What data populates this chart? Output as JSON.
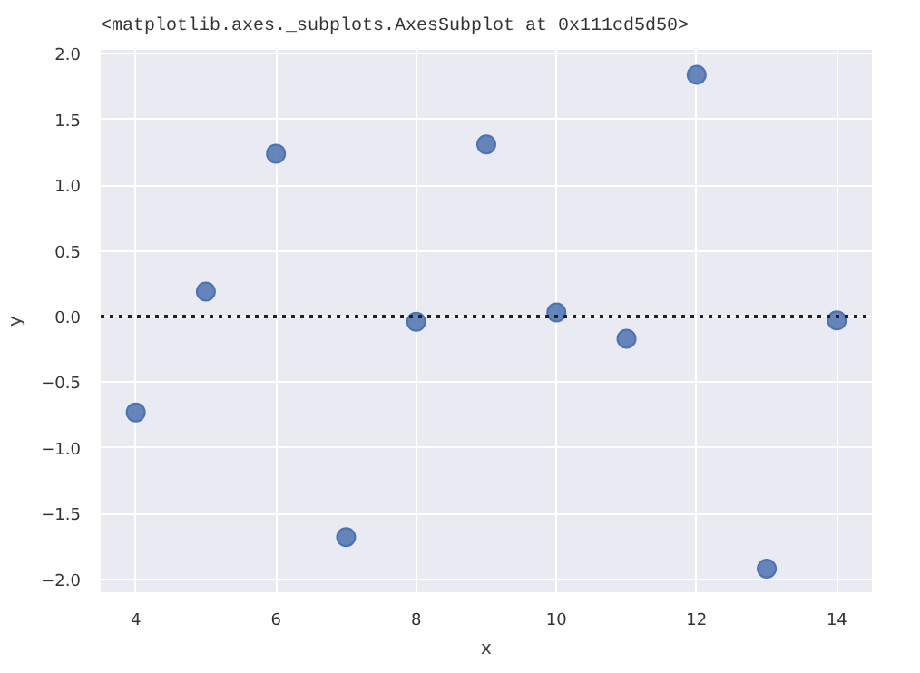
{
  "chart_data": {
    "type": "scatter",
    "xlabel": "x",
    "ylabel": "y",
    "annotations": [
      "<matplotlib.axes._subplots.AxesSubplot at 0x111cd5d50>"
    ],
    "x": [
      4,
      5,
      6,
      7,
      8,
      9,
      10,
      11,
      12,
      13,
      14
    ],
    "series": [
      {
        "color": "#4c72b0",
        "values": [
          -0.73,
          0.19,
          1.24,
          -1.68,
          -0.04,
          1.31,
          0.03,
          -0.17,
          1.84,
          -1.92,
          -0.03
        ]
      }
    ],
    "xlim": [
      3.5,
      14.5
    ],
    "ylim": [
      -2.1,
      2.03
    ],
    "xticks": [
      4,
      6,
      8,
      10,
      12,
      14
    ],
    "yticks": [
      {
        "value": -2,
        "label": "−2.0"
      },
      {
        "value": -1.5,
        "label": "−1.5"
      },
      {
        "value": -1,
        "label": "−1.0"
      },
      {
        "value": -0.5,
        "label": "−0.5"
      },
      {
        "value": 0,
        "label": "0.0"
      },
      {
        "value": 0.5,
        "label": "0.5"
      },
      {
        "value": 1,
        "label": "1.0"
      },
      {
        "value": 1.5,
        "label": "1.5"
      },
      {
        "value": 2,
        "label": "2.0"
      }
    ],
    "ref_lines": [
      {
        "axis": "y",
        "value": 0,
        "color": "#222222",
        "line_style": "dotted"
      }
    ],
    "grid": true,
    "marker": "circle"
  }
}
